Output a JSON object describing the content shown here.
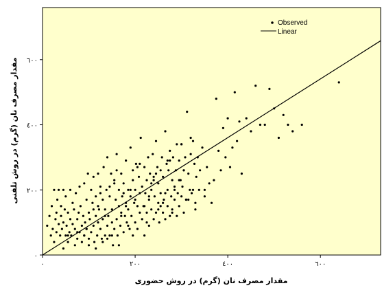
{
  "chart_data": {
    "type": "scatter",
    "title": "",
    "xlabel": "مقدار مصرف نان (گرم) در روش حضوری",
    "ylabel": "مقدار مصرف نان (گرم) در روش تلفنی",
    "xlim": [
      0,
      730
    ],
    "ylim": [
      0,
      760
    ],
    "x_ticks": [
      0,
      200,
      400,
      600
    ],
    "x_tick_labels": [
      "٠",
      "٢٠٠",
      "٤٠٠",
      "٦٠٠"
    ],
    "y_ticks": [
      0,
      200,
      400,
      600
    ],
    "y_tick_labels": [
      "٠",
      "٢٠٠",
      "٤٠٠",
      "٦٠٠"
    ],
    "grid": false,
    "legend_position": "top-right",
    "background_color": "#ffffcc",
    "marker_color": "#000000",
    "series": [
      {
        "name": "Observed",
        "kind": "points",
        "x": [
          10,
          15,
          18,
          20,
          22,
          25,
          25,
          28,
          30,
          30,
          32,
          35,
          35,
          38,
          40,
          40,
          42,
          45,
          45,
          48,
          50,
          50,
          52,
          55,
          55,
          58,
          60,
          60,
          62,
          65,
          65,
          68,
          70,
          70,
          72,
          75,
          75,
          78,
          80,
          80,
          82,
          85,
          85,
          88,
          90,
          90,
          92,
          95,
          95,
          98,
          100,
          100,
          102,
          105,
          105,
          108,
          110,
          110,
          112,
          115,
          115,
          118,
          120,
          120,
          122,
          125,
          125,
          128,
          130,
          130,
          132,
          135,
          135,
          138,
          140,
          140,
          142,
          145,
          145,
          148,
          150,
          150,
          152,
          155,
          155,
          158,
          160,
          160,
          162,
          165,
          165,
          168,
          170,
          170,
          172,
          175,
          175,
          178,
          180,
          180,
          182,
          185,
          185,
          188,
          190,
          190,
          192,
          195,
          195,
          198,
          200,
          200,
          202,
          205,
          205,
          208,
          210,
          210,
          212,
          215,
          215,
          218,
          220,
          220,
          222,
          225,
          225,
          228,
          230,
          230,
          232,
          235,
          235,
          238,
          240,
          240,
          242,
          245,
          245,
          248,
          250,
          250,
          252,
          255,
          255,
          258,
          260,
          260,
          262,
          265,
          265,
          268,
          270,
          270,
          272,
          275,
          275,
          278,
          280,
          280,
          282,
          285,
          285,
          288,
          290,
          290,
          292,
          295,
          295,
          298,
          300,
          300,
          302,
          305,
          305,
          308,
          310,
          312,
          315,
          318,
          320,
          322,
          325,
          328,
          330,
          332,
          335,
          338,
          340,
          345,
          350,
          355,
          360,
          365,
          370,
          375,
          380,
          385,
          390,
          395,
          400,
          405,
          410,
          415,
          420,
          425,
          430,
          440,
          450,
          460,
          470,
          480,
          490,
          500,
          510,
          520,
          530,
          540,
          560,
          640,
          55,
          95,
          130,
          150,
          165,
          185,
          100,
          115,
          140,
          45,
          75,
          120,
          170,
          200,
          230,
          260,
          280,
          310,
          330,
          350,
          245,
          275,
          300,
          320,
          160,
          190,
          220,
          250,
          145,
          175,
          205,
          235,
          265,
          90,
          110,
          125,
          135,
          155,
          180,
          195,
          210,
          225,
          240,
          255,
          270,
          285,
          295,
          305,
          315,
          325
        ],
        "y": [
          90,
          120,
          60,
          150,
          80,
          40,
          200,
          110,
          70,
          130,
          170,
          95,
          200,
          60,
          120,
          150,
          80,
          20,
          100,
          140,
          60,
          180,
          90,
          130,
          40,
          70,
          110,
          200,
          60,
          160,
          95,
          140,
          30,
          80,
          190,
          110,
          50,
          130,
          210,
          70,
          150,
          90,
          40,
          120,
          220,
          60,
          100,
          170,
          80,
          250,
          130,
          50,
          110,
          200,
          70,
          160,
          90,
          240,
          40,
          120,
          180,
          60,
          250,
          100,
          140,
          80,
          210,
          50,
          170,
          110,
          270,
          60,
          140,
          200,
          90,
          300,
          120,
          60,
          180,
          250,
          100,
          140,
          30,
          220,
          80,
          170,
          310,
          110,
          60,
          200,
          150,
          90,
          250,
          130,
          180,
          70,
          220,
          120,
          160,
          290,
          100,
          200,
          140,
          80,
          180,
          330,
          120,
          230,
          60,
          160,
          200,
          100,
          280,
          150,
          80,
          240,
          130,
          190,
          360,
          110,
          210,
          150,
          270,
          60,
          190,
          230,
          130,
          300,
          170,
          90,
          250,
          200,
          140,
          310,
          110,
          230,
          180,
          350,
          130,
          270,
          160,
          220,
          100,
          260,
          190,
          300,
          130,
          240,
          170,
          380,
          110,
          280,
          200,
          150,
          260,
          120,
          320,
          180,
          230,
          140,
          300,
          170,
          210,
          260,
          120,
          340,
          190,
          290,
          150,
          230,
          180,
          340,
          210,
          260,
          130,
          300,
          170,
          440,
          250,
          200,
          310,
          190,
          350,
          280,
          160,
          240,
          300,
          200,
          260,
          330,
          180,
          270,
          220,
          160,
          230,
          480,
          320,
          260,
          390,
          300,
          420,
          270,
          330,
          500,
          350,
          410,
          250,
          420,
          380,
          520,
          400,
          400,
          510,
          450,
          360,
          430,
          400,
          380,
          400,
          530,
          60,
          80,
          40,
          60,
          30,
          90,
          30,
          20,
          50,
          200,
          70,
          150,
          120,
          170,
          180,
          160,
          130,
          170,
          140,
          200,
          250,
          290,
          340,
          360,
          260,
          200,
          150,
          140,
          210,
          190,
          270,
          220,
          190,
          60,
          140,
          190,
          120,
          230,
          150,
          260,
          280,
          100,
          240,
          150,
          290,
          200,
          230,
          260,
          170,
          200
        ]
      },
      {
        "name": "Linear",
        "kind": "line",
        "x": [
          0,
          730
        ],
        "y": [
          0,
          658
        ]
      }
    ]
  }
}
